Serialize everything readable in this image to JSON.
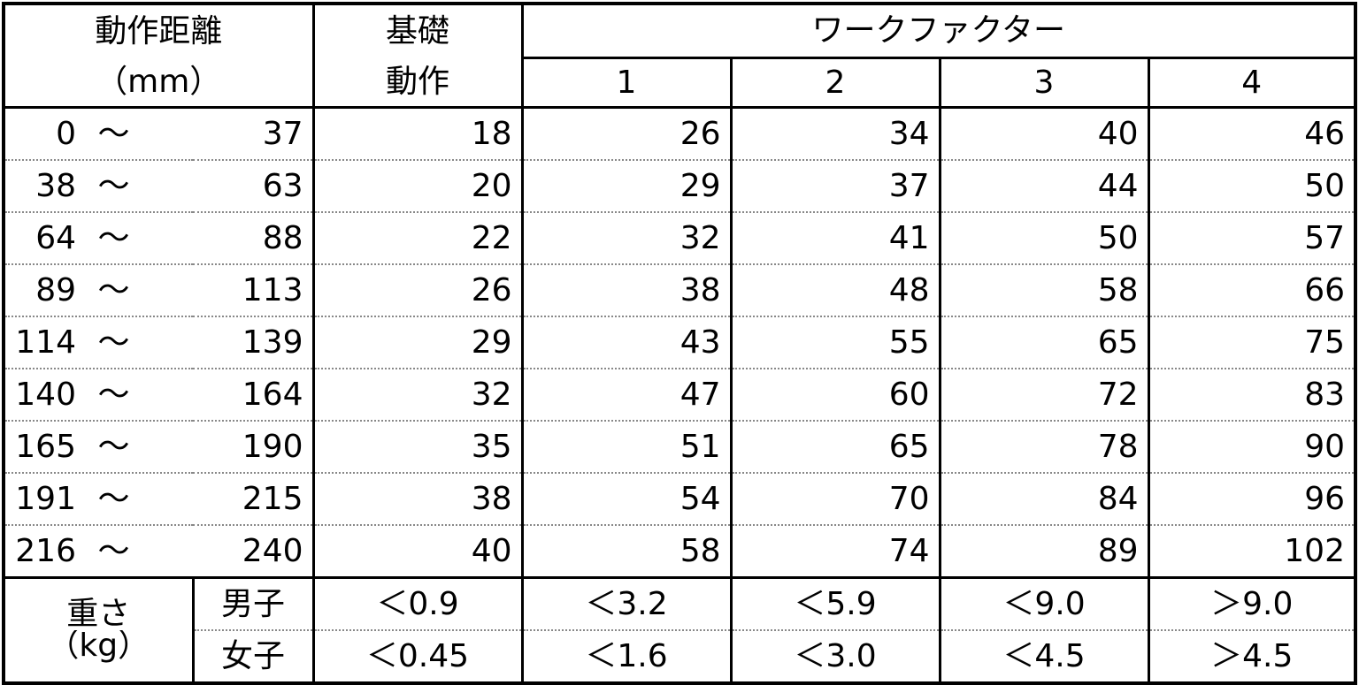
{
  "header": {
    "distance_label": "動作距離",
    "distance_unit": "（mm）",
    "basic_label_1": "基礎",
    "basic_label_2": "動作",
    "work_factor_label": "ワークファクター",
    "work_factor_columns": [
      "1",
      "2",
      "3",
      "4"
    ]
  },
  "rows": [
    {
      "from": "0",
      "to": "37",
      "basic": "18",
      "wf": [
        "26",
        "34",
        "40",
        "46"
      ]
    },
    {
      "from": "38",
      "to": "63",
      "basic": "20",
      "wf": [
        "29",
        "37",
        "44",
        "50"
      ]
    },
    {
      "from": "64",
      "to": "88",
      "basic": "22",
      "wf": [
        "32",
        "41",
        "50",
        "57"
      ]
    },
    {
      "from": "89",
      "to": "113",
      "basic": "26",
      "wf": [
        "38",
        "48",
        "58",
        "66"
      ]
    },
    {
      "from": "114",
      "to": "139",
      "basic": "29",
      "wf": [
        "43",
        "55",
        "65",
        "75"
      ]
    },
    {
      "from": "140",
      "to": "164",
      "basic": "32",
      "wf": [
        "47",
        "60",
        "72",
        "83"
      ]
    },
    {
      "from": "165",
      "to": "190",
      "basic": "35",
      "wf": [
        "51",
        "65",
        "78",
        "90"
      ]
    },
    {
      "from": "191",
      "to": "215",
      "basic": "38",
      "wf": [
        "54",
        "70",
        "84",
        "96"
      ]
    },
    {
      "from": "216",
      "to": "240",
      "basic": "40",
      "wf": [
        "58",
        "74",
        "89",
        "102"
      ]
    }
  ],
  "tilde": "～",
  "weight": {
    "label": "重さ",
    "unit": "（kg）",
    "male": {
      "label": "男子",
      "values": [
        "＜0.9",
        "＜3.2",
        "＜5.9",
        "＜9.0",
        "＞9.0"
      ]
    },
    "female": {
      "label": "女子",
      "values": [
        "＜0.45",
        "＜1.6",
        "＜3.0",
        "＜4.5",
        "＞4.5"
      ]
    }
  }
}
